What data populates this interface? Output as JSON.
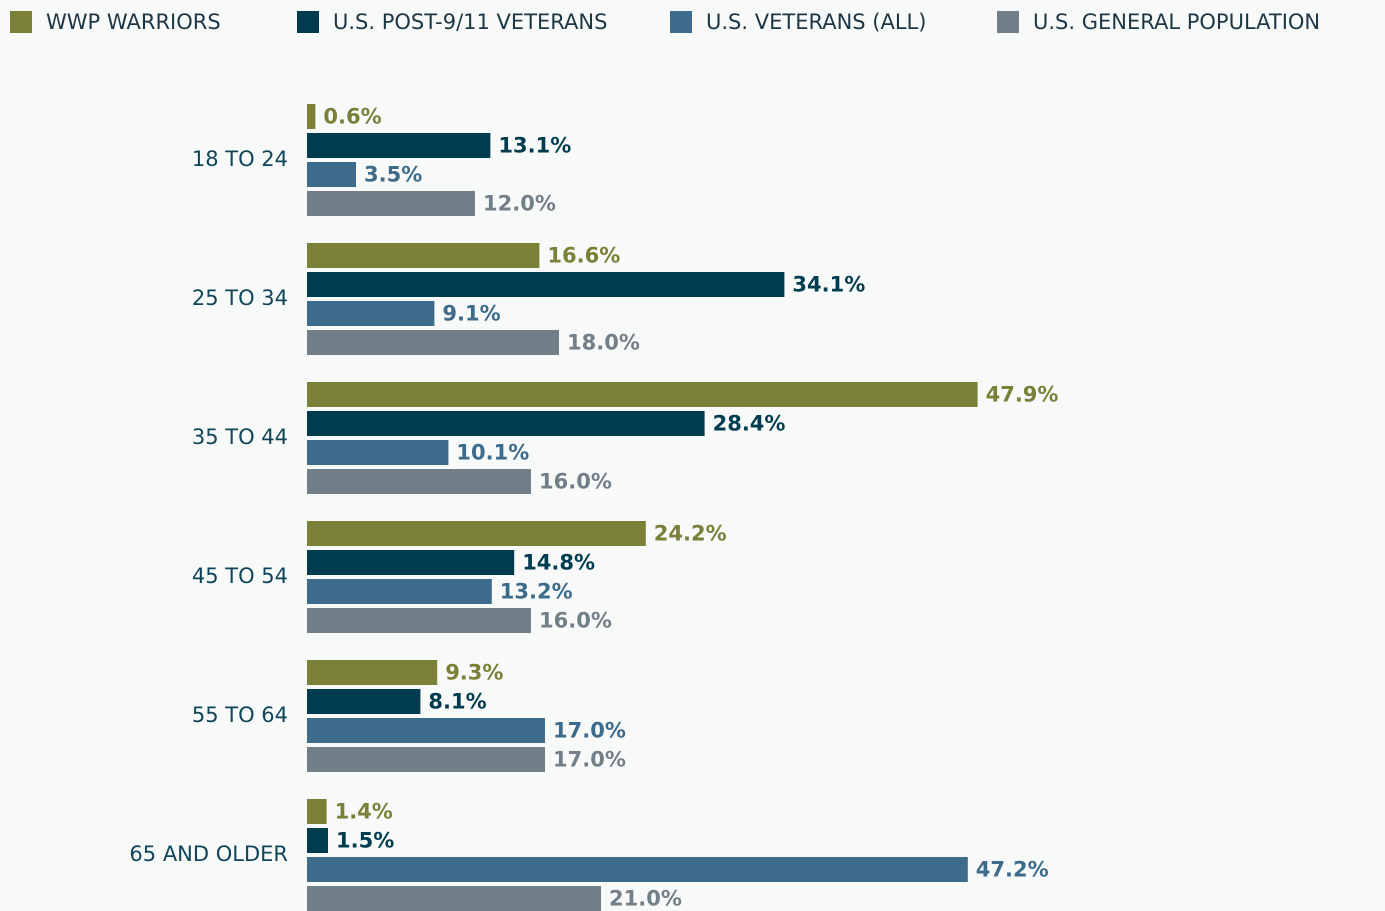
{
  "chart_data": {
    "type": "bar",
    "orientation": "horizontal",
    "categories": [
      "18 TO 24",
      "25 TO 34",
      "35 TO 44",
      "45 TO 54",
      "55 TO 64",
      "65 AND OLDER"
    ],
    "series": [
      {
        "name": "WWP WARRIORS",
        "color": "#7a8038",
        "values": [
          0.6,
          16.6,
          47.9,
          24.2,
          9.3,
          1.4
        ],
        "value_labels": [
          "0.6%",
          "16.6%",
          "47.9%",
          "24.2%",
          "9.3%",
          "1.4%"
        ]
      },
      {
        "name": "U.S. POST-9/11 VETERANS",
        "color": "#003c50",
        "values": [
          13.1,
          34.1,
          28.4,
          14.8,
          8.1,
          1.5
        ],
        "value_labels": [
          "13.1%",
          "34.1%",
          "28.4%",
          "14.8%",
          "8.1%",
          "1.5%"
        ]
      },
      {
        "name": "U.S. VETERANS (ALL)",
        "color": "#3d6b8c",
        "values": [
          3.5,
          9.1,
          10.1,
          13.2,
          17.0,
          47.2
        ],
        "value_labels": [
          "3.5%",
          "9.1%",
          "10.1%",
          "13.2%",
          "17.0%",
          "47.2%"
        ]
      },
      {
        "name": "U.S. GENERAL POPULATION",
        "color": "#737f88",
        "values": [
          12.0,
          18.0,
          16.0,
          16.0,
          17.0,
          21.0
        ],
        "value_labels": [
          "12.0%",
          "18.0%",
          "16.0%",
          "16.0%",
          "17.0%",
          "21.0%"
        ]
      }
    ],
    "legend": "top"
  }
}
